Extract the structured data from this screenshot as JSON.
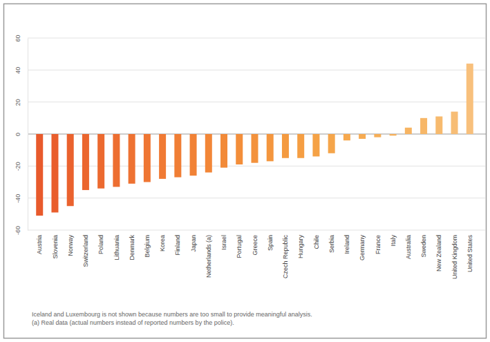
{
  "chart_data": {
    "type": "bar",
    "categories": [
      "Austria",
      "Slovenia",
      "Norway",
      "Switzerland",
      "Poland",
      "Lithuania",
      "Denmark",
      "Belgium",
      "Korea",
      "Finland",
      "Japan",
      "Netherlands (a)",
      "Israel",
      "Portugal",
      "Greece",
      "Spain",
      "Czech Republic",
      "Hungary",
      "Chile",
      "Serbia",
      "Ireland",
      "Germany",
      "France",
      "Italy",
      "Australia",
      "Sweden",
      "New Zealand",
      "United Kingdom",
      "United States"
    ],
    "values": [
      -51,
      -49,
      -45,
      -35,
      -34,
      -33,
      -31,
      -30,
      -28,
      -27,
      -26,
      -24,
      -21,
      -19,
      -18,
      -17,
      -15,
      -15,
      -14,
      -12,
      -4,
      -3,
      -2,
      -1,
      4,
      10,
      11,
      14,
      44
    ],
    "colors": [
      "#e85a2c",
      "#e95e2d",
      "#ea622e",
      "#eb662f",
      "#ec6a30",
      "#ed6e31",
      "#ee7232",
      "#ef7633",
      "#f07a34",
      "#f07e35",
      "#f18236",
      "#f28637",
      "#f28a38",
      "#f38e3a",
      "#f3923c",
      "#f4963e",
      "#f49a40",
      "#f59e43",
      "#f5a246",
      "#f5a54a",
      "#f6a84e",
      "#f6ab52",
      "#f6ae57",
      "#f6b15c",
      "#f7b462",
      "#f7b768",
      "#f7ba6e",
      "#f7bd75",
      "#f8c07c"
    ],
    "ylim": [
      -60,
      60
    ],
    "yticks": [
      -60,
      -40,
      -20,
      0,
      20,
      40,
      60
    ],
    "grid": true,
    "annotations": [
      "Iceland and Luxembourg is not shown because numbers are too small to provide meaningful analysis.",
      "(a) Real data (actual numbers instead of reported numbers by the police)."
    ]
  }
}
